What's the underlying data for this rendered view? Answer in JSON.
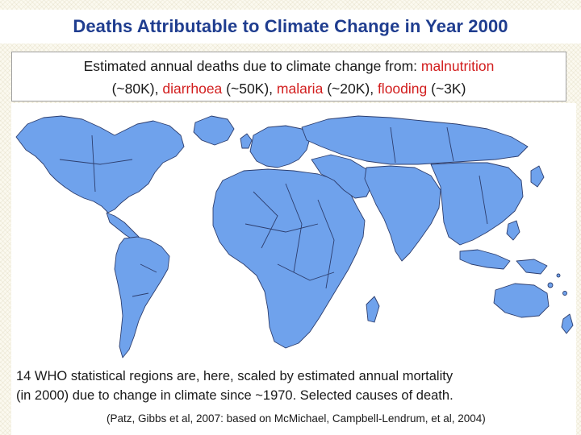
{
  "slide": {
    "title": "Deaths Attributable to Climate Change in Year 2000",
    "subtitle": {
      "intro": "Estimated annual deaths due to climate change from:",
      "causes": [
        {
          "name": "malnutrition",
          "count": "(~80K),"
        },
        {
          "name": "diarrhoea",
          "count": "(~50K),"
        },
        {
          "name": "malaria",
          "count": "(~20K),"
        },
        {
          "name": "flooding",
          "count": "(~3K)"
        }
      ],
      "highlight_color": "#d21e1e"
    },
    "map": {
      "description_name": "cartogram-world-map",
      "land_color": "#6fa2ec"
    },
    "caption": {
      "line1": "14 WHO statistical regions are, here, scaled by estimated annual mortality",
      "line2": "(in 2000) due to change in climate since ~1970.  Selected causes of death.",
      "citation": "(Patz, Gibbs et al, 2007: based on McMichael, Campbell-Lendrum, et al, 2004)"
    }
  }
}
